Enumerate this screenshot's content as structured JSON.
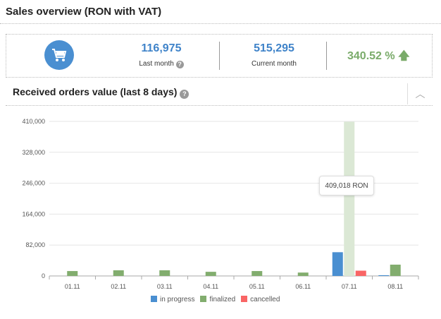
{
  "header": {
    "title": "Sales overview (RON with VAT)"
  },
  "stats": {
    "icon": "cart-icon",
    "last_month_value": "116,975",
    "last_month_label": "Last month",
    "current_month_value": "515,295",
    "current_month_label": "Current month",
    "change": "340.52 %",
    "change_icon": "arrow-up-icon"
  },
  "section": {
    "title": "Received orders value (last 8 days)",
    "collapse_icon": "chevron-up-icon"
  },
  "tooltip": "409,018 RON",
  "chart_data": {
    "type": "bar",
    "categories": [
      "01.11",
      "02.11",
      "03.11",
      "04.11",
      "05.11",
      "06.11",
      "07.11",
      "08.11"
    ],
    "ylim": [
      0,
      410000
    ],
    "yticks": [
      "0",
      "82,000",
      "164,000",
      "246,000",
      "328,000",
      "410,000"
    ],
    "grid": true,
    "legend_position": "bottom",
    "series": [
      {
        "name": "in progress",
        "color": "#4a8fd1",
        "values": [
          0,
          0,
          0,
          0,
          0,
          0,
          63000,
          2000
        ]
      },
      {
        "name": "finalized",
        "color": "#82ad6e",
        "values": [
          13000,
          15000,
          15000,
          11000,
          13000,
          9000,
          409018,
          30000
        ]
      },
      {
        "name": "cancelled",
        "color": "#f96565",
        "values": [
          0,
          0,
          0,
          0,
          0,
          0,
          14000,
          0
        ]
      }
    ]
  }
}
